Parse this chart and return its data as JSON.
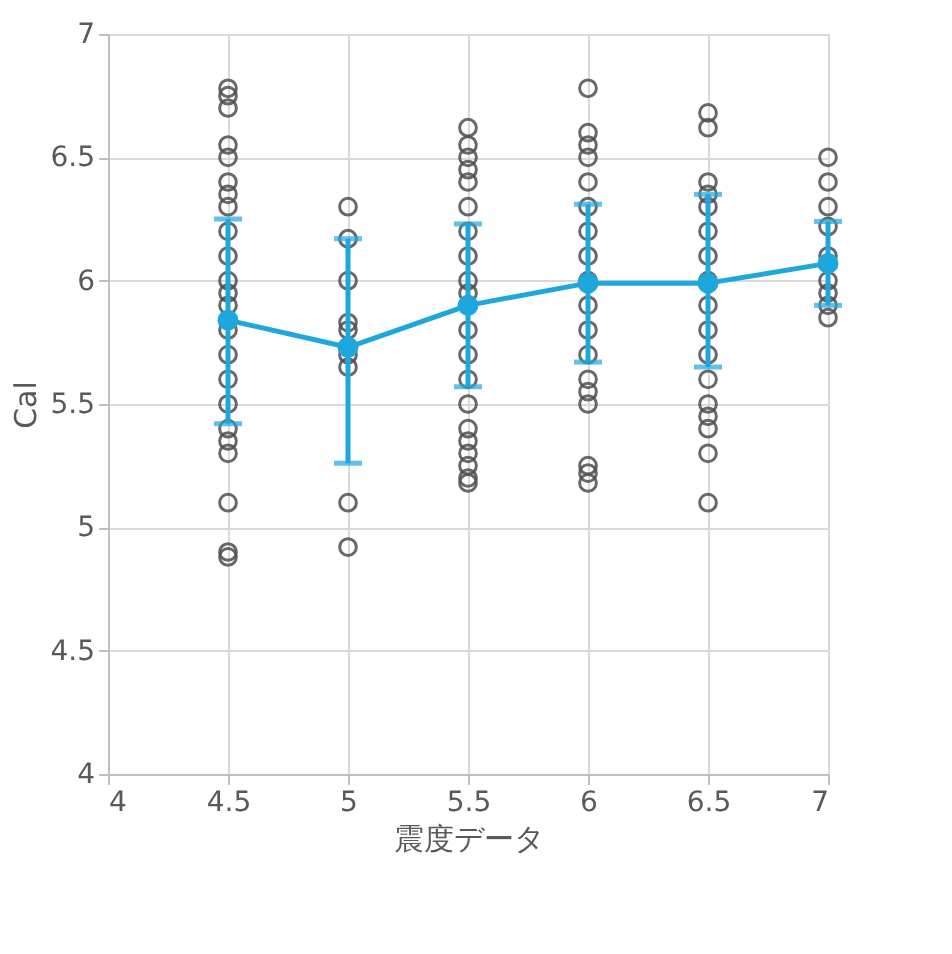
{
  "chart_data": {
    "type": "scatter",
    "xlabel": "震度データ",
    "ylabel": "Cal",
    "xlim": [
      4,
      7
    ],
    "xticks": [
      4,
      4.5,
      5,
      5.5,
      6,
      6.5,
      7
    ],
    "ylim": [
      4,
      7
    ],
    "yticks": [
      4,
      4.5,
      5,
      5.5,
      6,
      6.5,
      7
    ],
    "grid": true,
    "series": [
      {
        "color": "#505050",
        "marker": "circle",
        "x": [
          4.5,
          4.5,
          4.5,
          4.5,
          4.5,
          4.5,
          4.5,
          4.5,
          4.5,
          4.5,
          4.5,
          4.5,
          4.5,
          4.5,
          4.5,
          4.5,
          4.5,
          4.5,
          4.5,
          4.5,
          4.5,
          4.5,
          4.5,
          5,
          5,
          5,
          5,
          5,
          5,
          5,
          5,
          5,
          5.5,
          5.5,
          5.5,
          5.5,
          5.5,
          5.5,
          5.5,
          5.5,
          5.5,
          5.5,
          5.5,
          5.5,
          5.5,
          5.5,
          5.5,
          5.5,
          5.5,
          5.5,
          5.5,
          5.5,
          6,
          6,
          6,
          6,
          6,
          6,
          6,
          6,
          6,
          6,
          6,
          6,
          6,
          6,
          6,
          6,
          6,
          6,
          6.5,
          6.5,
          6.5,
          6.5,
          6.5,
          6.5,
          6.5,
          6.5,
          6.5,
          6.5,
          6.5,
          6.5,
          6.5,
          6.5,
          6.5,
          6.5,
          6.5,
          7,
          7,
          7,
          7,
          7,
          7,
          7,
          7,
          7
        ],
        "values": [
          6.78,
          6.75,
          6.7,
          6.55,
          6.5,
          6.4,
          6.35,
          6.3,
          6.2,
          6.1,
          6.0,
          5.95,
          5.9,
          5.8,
          5.7,
          5.6,
          5.5,
          5.4,
          5.35,
          5.3,
          5.1,
          4.9,
          4.88,
          6.3,
          6.17,
          6.0,
          5.83,
          5.8,
          5.7,
          5.65,
          5.1,
          4.92,
          6.62,
          6.55,
          6.5,
          6.45,
          6.4,
          6.3,
          6.2,
          6.1,
          6.0,
          5.95,
          5.8,
          5.7,
          5.6,
          5.5,
          5.4,
          5.35,
          5.3,
          5.25,
          5.2,
          5.18,
          6.78,
          6.6,
          6.55,
          6.5,
          6.4,
          6.3,
          6.2,
          6.1,
          6.0,
          5.9,
          5.8,
          5.7,
          5.6,
          5.55,
          5.5,
          5.25,
          5.22,
          5.18,
          6.68,
          6.62,
          6.4,
          6.35,
          6.3,
          6.2,
          6.1,
          6.0,
          5.9,
          5.8,
          5.7,
          5.6,
          5.5,
          5.45,
          5.4,
          5.3,
          5.1,
          6.5,
          6.4,
          6.3,
          6.22,
          6.1,
          6.0,
          5.95,
          5.9,
          5.85
        ]
      },
      {
        "type": "line",
        "color": "#1ea7dc",
        "marker": "circle",
        "line_style": "solid",
        "x": [
          4.5,
          5,
          5.5,
          6,
          6.5,
          7
        ],
        "values": [
          5.84,
          5.73,
          5.9,
          5.99,
          5.99,
          6.07
        ],
        "errors": [
          [
            5.42,
            6.25
          ],
          [
            5.26,
            6.17
          ],
          [
            5.57,
            6.23
          ],
          [
            5.67,
            6.31
          ],
          [
            5.65,
            6.35
          ],
          [
            5.9,
            6.24
          ]
        ]
      }
    ]
  }
}
